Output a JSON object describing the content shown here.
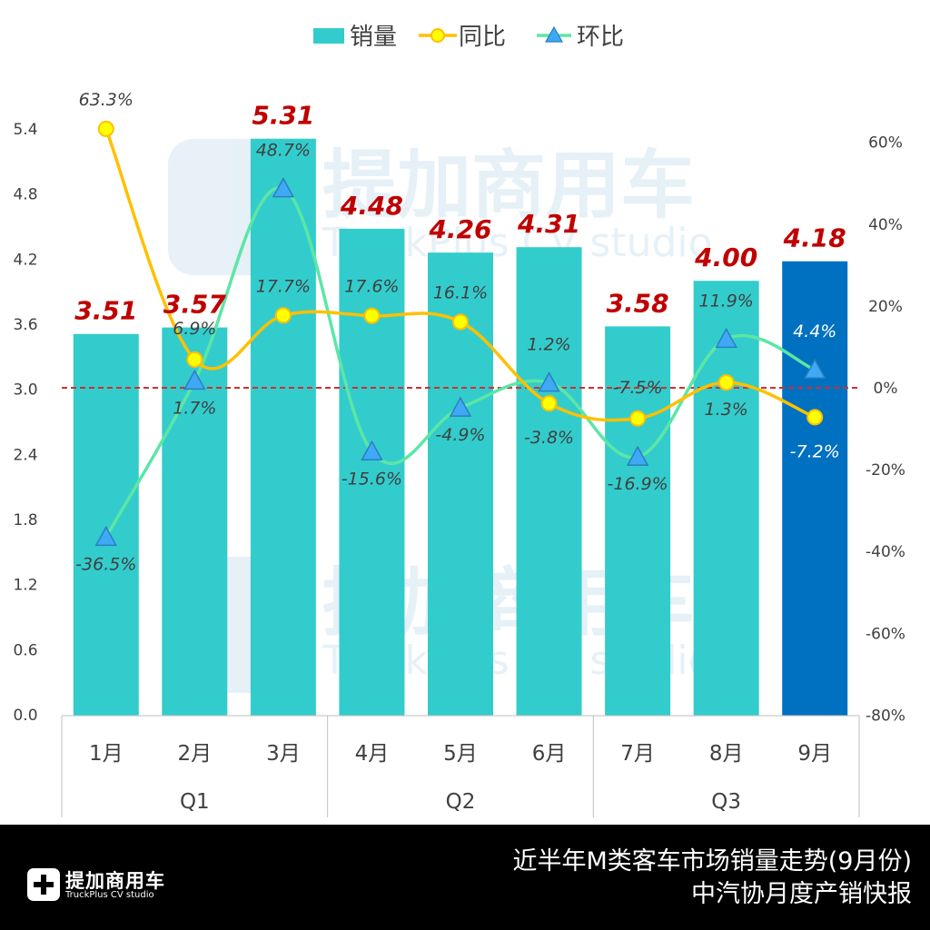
{
  "chart_data": {
    "type": "bar+line",
    "categories": [
      "1月",
      "2月",
      "3月",
      "4月",
      "5月",
      "6月",
      "7月",
      "8月",
      "9月"
    ],
    "groups": [
      {
        "label": "Q1",
        "count": 3
      },
      {
        "label": "Q2",
        "count": 3
      },
      {
        "label": "Q3",
        "count": 3
      }
    ],
    "series": [
      {
        "name": "销量",
        "type": "bar",
        "axis": "left",
        "values": [
          3.51,
          3.57,
          5.31,
          4.48,
          4.26,
          4.31,
          3.58,
          4.0,
          4.18
        ],
        "labels": [
          "3.51",
          "3.57",
          "5.31",
          "4.48",
          "4.26",
          "4.31",
          "3.58",
          "4.00",
          "4.18"
        ]
      },
      {
        "name": "同比",
        "type": "line",
        "axis": "right",
        "values": [
          63.3,
          6.9,
          17.7,
          17.6,
          16.1,
          -3.8,
          -7.5,
          1.3,
          -7.2
        ],
        "labels": [
          "63.3%",
          "6.9%",
          "17.7%",
          "17.6%",
          "16.1%",
          "-3.8%",
          "-7.5%",
          "1.3%",
          "-7.2%"
        ]
      },
      {
        "name": "环比",
        "type": "line",
        "axis": "right",
        "values": [
          -36.5,
          1.7,
          48.7,
          -15.6,
          -4.9,
          1.2,
          -16.9,
          11.9,
          4.4
        ],
        "labels": [
          "-36.5%",
          "1.7%",
          "48.7%",
          "-15.6%",
          "-4.9%",
          "1.2%",
          "-16.9%",
          "11.9%",
          "4.4%"
        ]
      }
    ],
    "y_left": {
      "min": 0,
      "max": 5.4,
      "ticks": [
        "0.0",
        "0.6",
        "1.2",
        "1.8",
        "2.4",
        "3.0",
        "3.6",
        "4.2",
        "4.8",
        "5.4"
      ]
    },
    "y_right": {
      "min": -80,
      "max": 65,
      "ticks": [
        "-80%",
        "-60%",
        "-40%",
        "-20%",
        "0%",
        "20%",
        "40%",
        "60%"
      ]
    },
    "reference_line": {
      "value_right": 0,
      "style": "dashed",
      "color": "#d32f2f"
    },
    "legend_position": "top-center",
    "colors": {
      "bar": "#33cccc",
      "bar_highlight": "#0070c0",
      "yoy_line": "#ffc000",
      "yoy_marker": "#ffff00",
      "mom_line": "#5ce6a6",
      "mom_marker": "#3fa9f5",
      "bar_label": "#c00000"
    }
  },
  "watermark": {
    "name": "提加商用车",
    "sub": "TruckPlus CV studio"
  },
  "footer": {
    "title": "近半年M类客车市场销量走势(9月份)",
    "subtitle": "中汽协月度产销快报",
    "logo_name": "提加商用车",
    "logo_sub": "TruckPlus CV studio"
  }
}
